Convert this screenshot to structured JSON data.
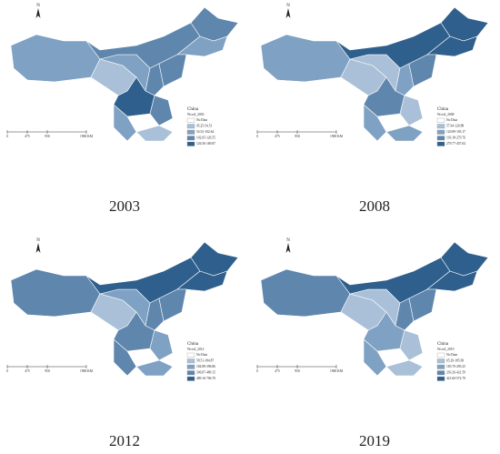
{
  "panels": [
    {
      "year": "2003",
      "north": "N",
      "scale_labels": [
        "0",
        "475",
        "950",
        "1900 KM"
      ],
      "legend_title": "China",
      "legend_field": "Wcei2_2003",
      "legend_items": [
        "No Data",
        "45.25-54.51",
        "54.52-102.64",
        "102.65-126.55",
        "126.56-169.87"
      ]
    },
    {
      "year": "2008",
      "north": "N",
      "scale_labels": [
        "0",
        "475",
        "950",
        "1900 KM"
      ],
      "legend_title": "China",
      "legend_field": "Wcei2_2008",
      "legend_items": [
        "No Data",
        "57.94-120.88",
        "120.89-193.17",
        "193.18-279.76",
        "279.77-457.04"
      ]
    },
    {
      "year": "2012",
      "north": "N",
      "scale_labels": [
        "0",
        "475",
        "950",
        "1900 KM"
      ],
      "legend_title": "China",
      "legend_field": "Wcei2_2012",
      "legend_items": [
        "No Data",
        "58.51-184.87",
        "184.88-396.86",
        "396.87-489.15",
        "489.16-706.70"
      ]
    },
    {
      "year": "2019",
      "north": "N",
      "scale_labels": [
        "0",
        "475",
        "950",
        "1900 KM"
      ],
      "legend_title": "China",
      "legend_field": "Wcei2_2019",
      "legend_items": [
        "No Data",
        "65.29-185.69",
        "185.70-293.25",
        "293.26-421.59",
        "421.60-572.79"
      ]
    }
  ]
}
